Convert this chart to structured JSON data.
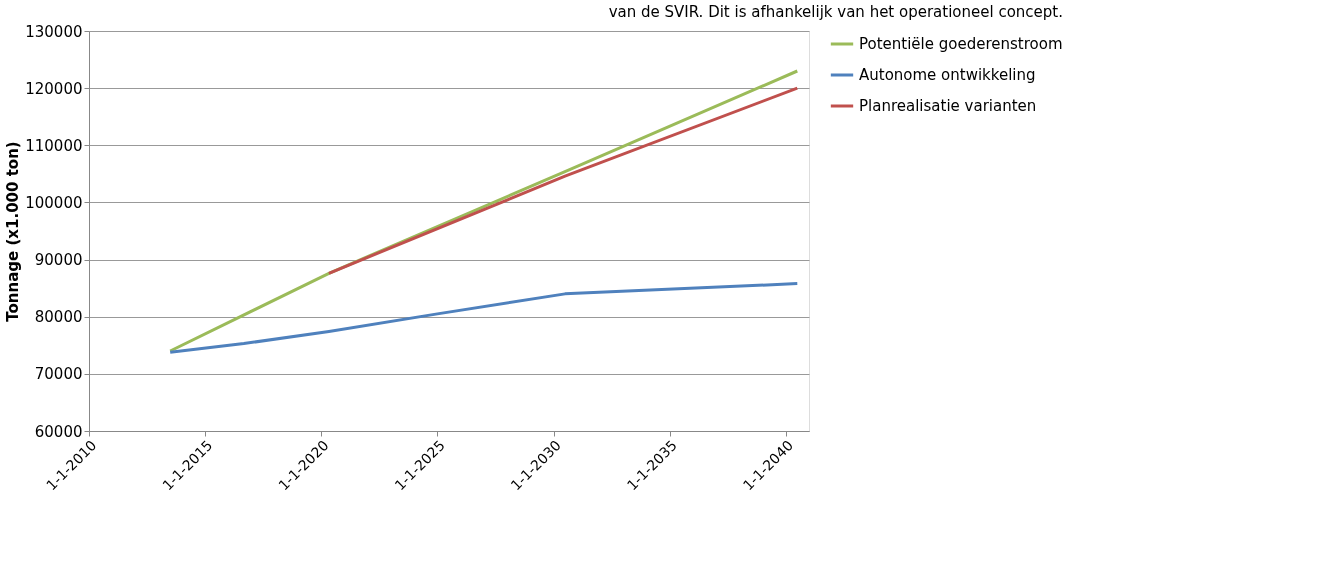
{
  "chart_data": {
    "type": "line",
    "ylabel": "Tonnage (x1.000 ton)",
    "annotations": [
      "van de SVIR. Dit is afhankelijk van het operationeel concept."
    ],
    "series": [
      {
        "name": "Potentiële goederenstroom",
        "color": "#9bbb59",
        "x": [
          "2013-07",
          "2020-05",
          "2030-07",
          "2040-07"
        ],
        "values": [
          74000,
          87600,
          105400,
          123000
        ]
      },
      {
        "name": "Autonome ontwikkeling",
        "color": "#4f81bd",
        "x": [
          "2013-07",
          "2016-09",
          "2020-05",
          "2025-01",
          "2030-07",
          "2040-07"
        ],
        "values": [
          73800,
          75300,
          77400,
          80500,
          84000,
          85800
        ]
      },
      {
        "name": "Planrealisatie varianten",
        "color": "#c0504d",
        "x": [
          "2020-05",
          "2030-07",
          "2040-07"
        ],
        "values": [
          87600,
          104600,
          120000
        ]
      }
    ],
    "xlim": [
      "2010-01-01",
      "2041-01-01"
    ],
    "xticks": [
      {
        "value": "2010-01-01",
        "label": "1-1-2010"
      },
      {
        "value": "2015-01-01",
        "label": "1-1-2015"
      },
      {
        "value": "2020-01-01",
        "label": "1-1-2020"
      },
      {
        "value": "2025-01-01",
        "label": "1-1-2025"
      },
      {
        "value": "2030-01-01",
        "label": "1-1-2030"
      },
      {
        "value": "2035-01-01",
        "label": "1-1-2035"
      },
      {
        "value": "2040-01-01",
        "label": "1-1-2040"
      }
    ],
    "ylim": [
      60000,
      130000
    ],
    "yticks": [
      60000,
      70000,
      80000,
      90000,
      100000,
      110000,
      120000,
      130000
    ],
    "grid": "y",
    "legend": "right",
    "marker": "none",
    "line_style": "solid"
  }
}
